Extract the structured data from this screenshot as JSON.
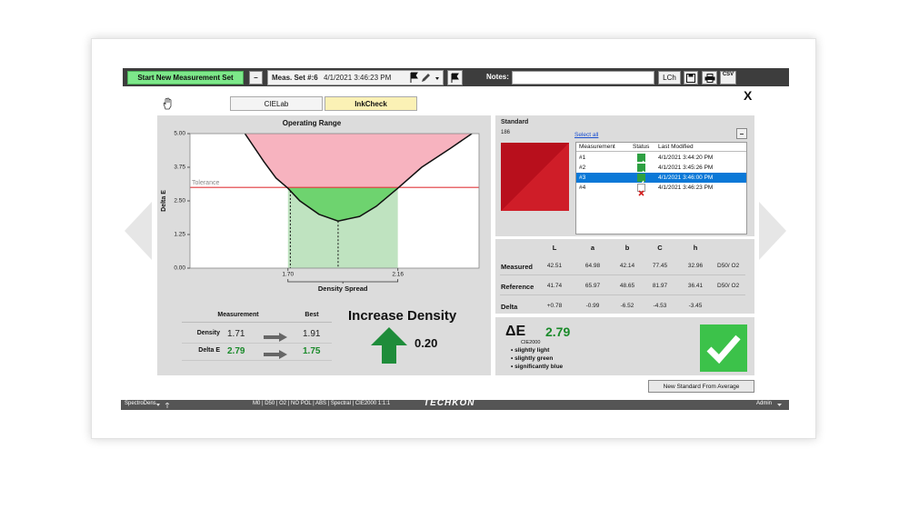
{
  "toolbar": {
    "start_button": "Start New Measurement Set",
    "meas_set_label": "Meas. Set #:6",
    "meas_set_date": "4/1/2021 3:46:23 PM",
    "notes_label": "Notes:",
    "lch_button": "LCh",
    "csv_button": "CSV"
  },
  "close": "X",
  "tabs": [
    "CIELab",
    "InkCheck"
  ],
  "active_tab": 1,
  "chart_data": {
    "type": "line",
    "title": "Operating Range",
    "y_label": "Delta E",
    "x_label": "Density Spread",
    "x": [
      1.52,
      1.6,
      1.65,
      1.7,
      1.75,
      1.83,
      1.91,
      2.0,
      2.07,
      2.16,
      2.26,
      2.38,
      2.47
    ],
    "values": [
      5.0,
      3.95,
      3.35,
      2.97,
      2.5,
      2.0,
      1.75,
      1.92,
      2.3,
      2.97,
      3.75,
      4.45,
      5.0
    ],
    "xlim": [
      1.29,
      2.5
    ],
    "ylim": [
      0,
      5
    ],
    "xticks": [
      {
        "value": 1.7,
        "label": "1.70"
      },
      {
        "value": 2.16,
        "label": "2.16"
      }
    ],
    "yticks": [
      {
        "value": 0,
        "label": "0.00"
      },
      {
        "value": 1.25,
        "label": "1.25"
      },
      {
        "value": 2.5,
        "label": "2.50"
      },
      {
        "value": 3.75,
        "label": "3.75"
      },
      {
        "value": 5,
        "label": "5.00"
      }
    ],
    "tolerance": 3.0,
    "tolerance_label": "Tolerance",
    "markers": [
      1.71,
      1.91
    ],
    "colors": {
      "curve": "#111111",
      "tolerance": "#e0393e",
      "above_tolerance": "#f7b3bf",
      "in_tolerance": "#6ed36f",
      "spread": "#bfe3c0"
    }
  },
  "summary": {
    "headers": [
      "Measurement",
      "Best"
    ],
    "rows": [
      {
        "label": "Density",
        "value": "1.71",
        "best": "1.91",
        "color": "#222222"
      },
      {
        "label": "Delta E",
        "value": "2.79",
        "best": "1.75",
        "color": "#1a8a2a"
      }
    ],
    "recommendation": "Increase Density",
    "change": "0.20"
  },
  "standard": {
    "title": "Standard",
    "id": "186",
    "select_all": "Select all",
    "columns": [
      "Measurement",
      "Status",
      "Last Modified"
    ],
    "rows": [
      {
        "name": "#1",
        "status": "pass",
        "modified": "4/1/2021 3:44:20 PM"
      },
      {
        "name": "#2",
        "status": "pass",
        "modified": "4/1/2021 3:45:26 PM"
      },
      {
        "name": "#3",
        "status": "pass",
        "modified": "4/1/2021 3:46:00 PM"
      },
      {
        "name": "#4",
        "status": "fail",
        "modified": "4/1/2021 3:46:23 PM"
      }
    ],
    "selected": 2
  },
  "lab_table": {
    "columns": [
      "L",
      "a",
      "b",
      "C",
      "h"
    ],
    "rows": [
      {
        "label": "Measured",
        "values": [
          "42.51",
          "64.98",
          "42.14",
          "77.45",
          "32.96"
        ],
        "illuminant": "D50/ O2"
      },
      {
        "label": "Reference",
        "values": [
          "41.74",
          "65.97",
          "48.65",
          "81.97",
          "36.41"
        ],
        "illuminant": "D50/ O2"
      },
      {
        "label": "Delta",
        "values": [
          "+0.78",
          "-0.99",
          "-6.52",
          "-4.53",
          "-3.45"
        ]
      }
    ]
  },
  "delta_e": {
    "symbol": "ΔE",
    "formula": "CIE2000",
    "value": "2.79",
    "notes": [
      "• slightly light",
      "• slightly green",
      "• significantly blue"
    ]
  },
  "new_standard_button": "New Standard From Average",
  "status_bar": {
    "device": "SpectroDens",
    "settings": "M0 | D50 | O2 | NO POL | ABS | Spectral | CIE2000 1:1:1",
    "brand": "TECHKON",
    "user": "Admin"
  }
}
